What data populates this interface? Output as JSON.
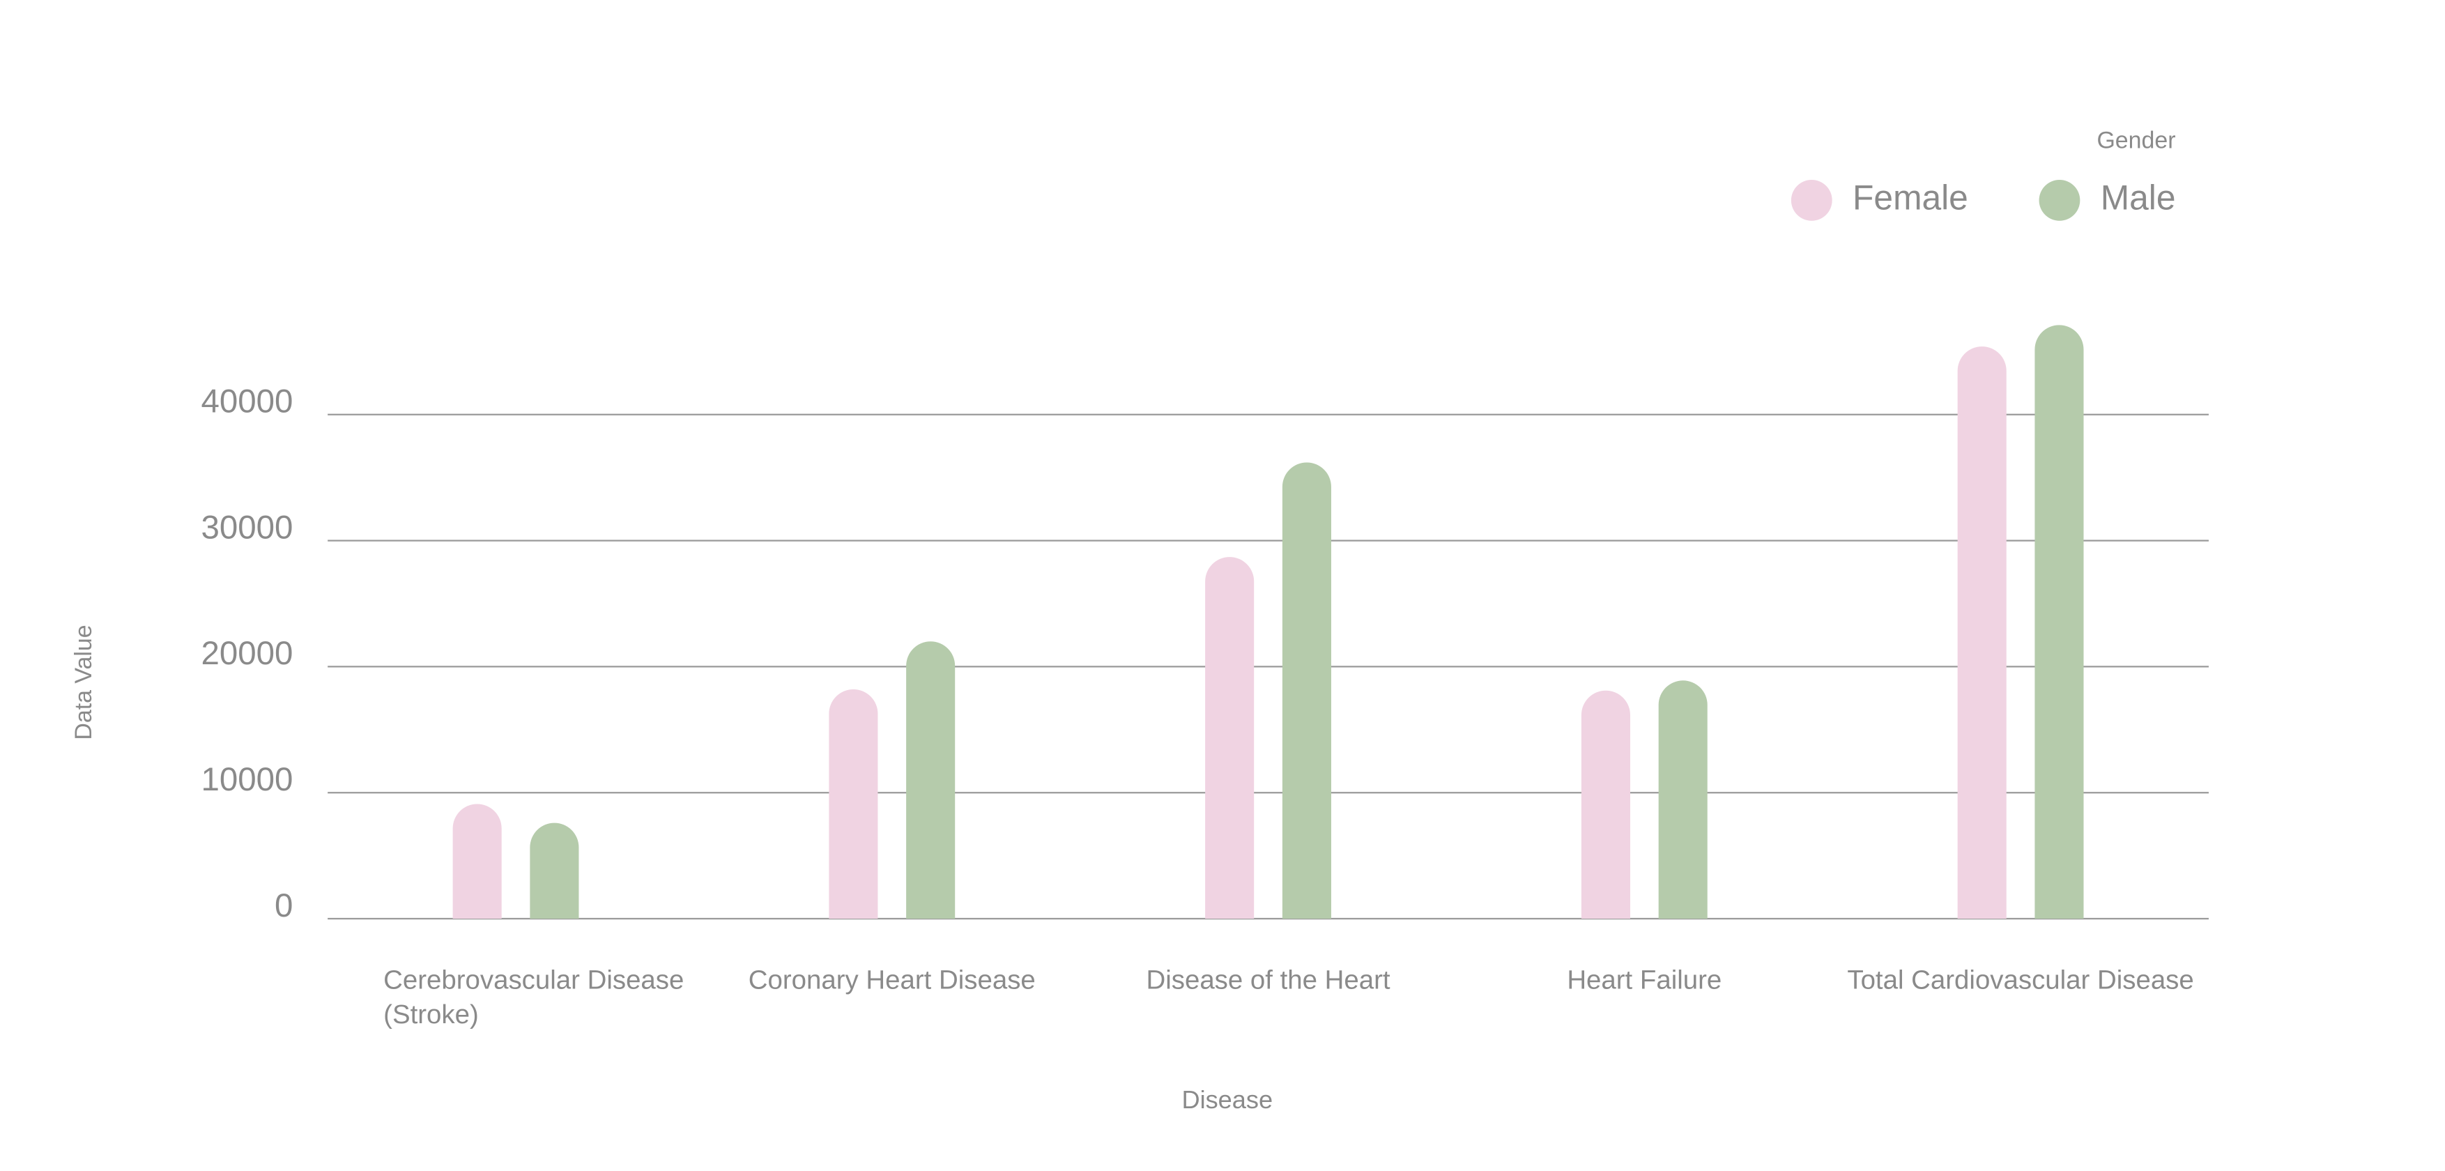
{
  "chart_data": {
    "type": "bar",
    "x_label": "Disease",
    "y_label": "Data Value",
    "legend_title": "Gender",
    "legend_position": "top-right",
    "categories": [
      "Cerebrovascular Disease (Stroke)",
      "Coronary Heart Disease",
      "Disease of the Heart",
      "Heart Failure",
      "Total Cardiovascular Disease"
    ],
    "series": [
      {
        "name": "Female",
        "color": "#f0d3e2",
        "values": [
          9100,
          18200,
          28700,
          18100,
          45400
        ]
      },
      {
        "name": "Male",
        "color": "#b5cbab",
        "values": [
          7600,
          22000,
          36200,
          18900,
          47100
        ]
      }
    ],
    "ylim": [
      0,
      50000
    ],
    "yticks": [
      0,
      10000,
      20000,
      30000,
      40000
    ],
    "grid": true
  }
}
